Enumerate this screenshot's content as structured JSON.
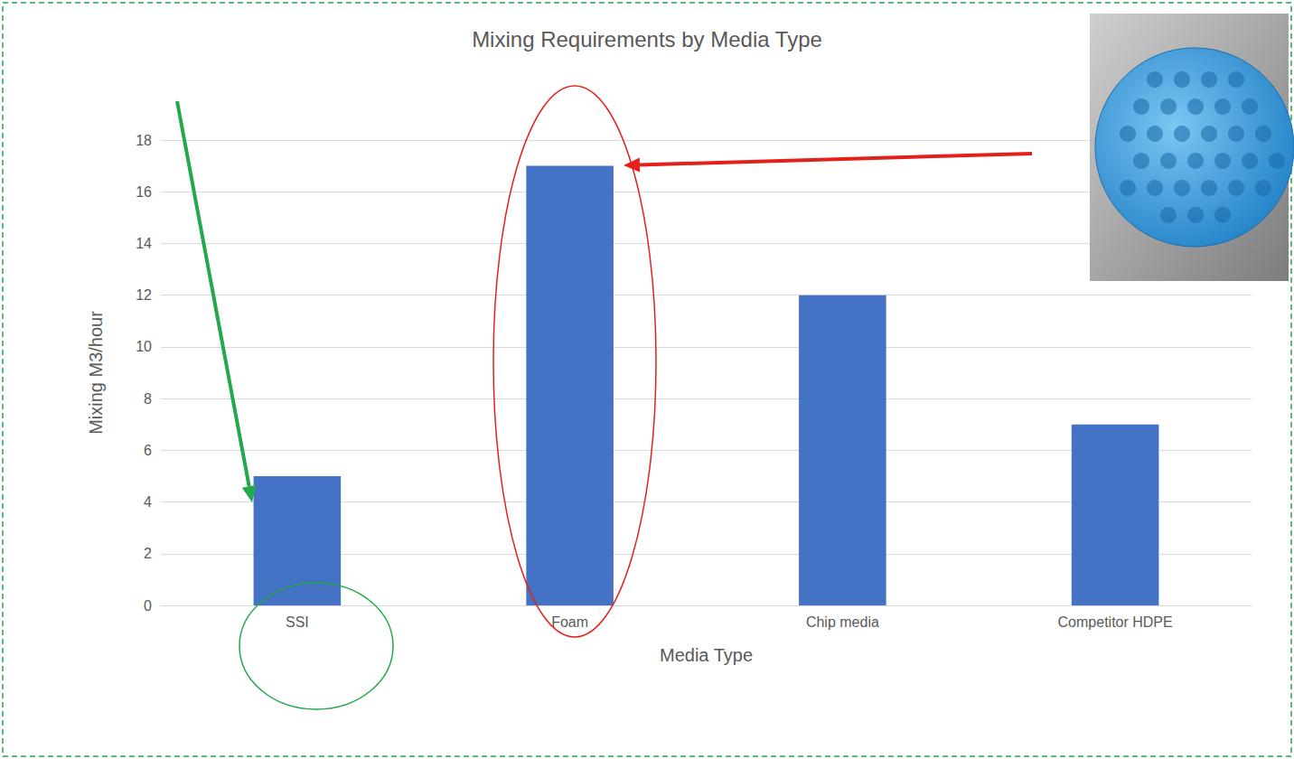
{
  "chart_data": {
    "type": "bar",
    "title": "Mixing Requirements by Media Type",
    "xlabel": "Media Type",
    "ylabel": "Mixing M3/hour",
    "categories": [
      "SSI",
      "Foam",
      "Chip media",
      "Competitor HDPE"
    ],
    "values": [
      5,
      17,
      12,
      7
    ],
    "color": "#4472c4",
    "ylim": [
      0,
      18
    ],
    "yticks": [
      0,
      2,
      4,
      6,
      8,
      10,
      12,
      14,
      16,
      18
    ],
    "grid": true
  }
}
